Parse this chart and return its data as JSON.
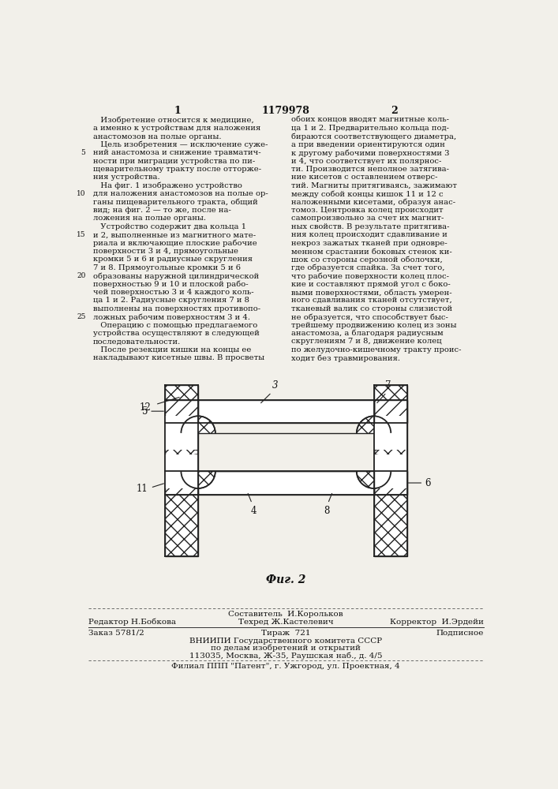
{
  "patent_number": "1179978",
  "col1_header": "1",
  "col2_header": "2",
  "col1_text": [
    "   Изобретение относится к медицине,",
    "а именно к устройствам для наложения",
    "анастомозов на полые органы.",
    "   Цель изобретения — исключение суже-",
    "ний анастомоза и снижение травматич-",
    "ности при миграции устройства по пи-",
    "щеварительному тракту после отторже-",
    "ния устройства.",
    "   На фиг. 1 изображено устройство",
    "для наложения анастомозов на полые ор-",
    "ганы пищеварительного тракта, общий",
    "вид; на фиг. 2 — то же, после на-",
    "ложения на полые органы.",
    "   Устройство содержит два кольца 1",
    "и 2, выполненные из магнитного мате-",
    "риала и включающие плоские рабочие",
    "поверхности 3 и 4, прямоугольные",
    "кромки 5 и 6 и радиусные скругления",
    "7 и 8. Прямоугольные кромки 5 и 6",
    "образованы наружной цилиндрической",
    "поверхностью 9 и 10 и плоской рабо-",
    "чей поверхностью 3 и 4 каждого коль-",
    "ца 1 и 2. Радиусные скругления 7 и 8",
    "выполнены на поверхностях противопо-",
    "ложных рабочим поверхностям 3 и 4.",
    "   Операцию с помощью предлагаемого",
    "устройства осуществляют в следующей",
    "последовательности.",
    "   После резекции кишки на концы ее",
    "накладывают кисетные швы. В просветы"
  ],
  "col2_text": [
    "обоих концов вводят магнитные коль-",
    "ца 1 и 2. Предварительно кольца под-",
    "бираются соответствующего диаметра,",
    "а при введении ориентируются один",
    "к другому рабочими поверхностями 3",
    "и 4, что соответствует их полярнос-",
    "ти. Производится неполное затягива-",
    "ние кисетов с оставлением отверс-",
    "тий. Магниты притягиваясь, зажимают",
    "между собой концы кишок 11 и 12 с",
    "наложенными кисетами, образуя анас-",
    "томоз. Центровка колец происходит",
    "самопроизвольно за счет их магнит-",
    "ных свойств. В результате притягива-",
    "ния колец происходит сдавливание и",
    "некроз зажатых тканей при одновре-",
    "менном срастании боковых стенок ки-",
    "шок со стороны серозной оболочки,",
    "где образуется спайка. За счет того,",
    "что рабочие поверхности колец плос-",
    "кие и составляют прямой угол с боко-",
    "выми поверхностями, область умерен-",
    "ного сдавливания тканей отсутствует,",
    "тканевый валик со стороны слизистой",
    "не образуется, что способствует быс-",
    "трейшему продвижению колец из зоны",
    "анастомоза, а благодаря радиусным",
    "скруглениям 7 и 8, движение колец",
    "по желудочно-кишечному тракту проис-",
    "ходит без травмирования."
  ],
  "line_nums": {
    "4": "5",
    "9": "10",
    "14": "15",
    "19": "20",
    "24": "25"
  },
  "fig_caption": "Фиг. 2",
  "footer_composer": "Составитель  И.Корольков",
  "footer_editor": "Редактор Н.Бобкова",
  "footer_techred": "Техред Ж.Кастелевич",
  "footer_corrector": "Корректор  И.Эрдейи",
  "footer_order": "Заказ 5781/2",
  "footer_tirazh": "Тираж  721",
  "footer_podpis": "Подписное",
  "footer_vniip": "ВНИИПИ Государственного комитета СССР",
  "footer_dela": "по делам изобретений и открытий",
  "footer_addr": "113035, Москва, Ж-35, Раушская наб., д. 4/5",
  "footer_filial": "Филиал ППП \"Патент\", г. Ужгород, ул. Проектная, 4",
  "bg_color": "#f2f0ea",
  "text_color": "#111111"
}
